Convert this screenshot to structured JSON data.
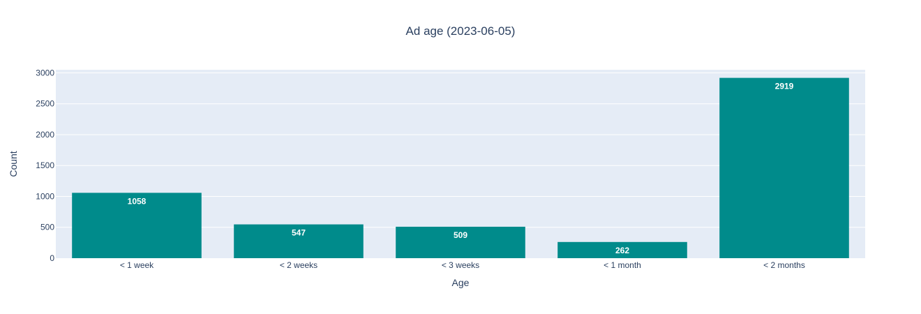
{
  "chart_data": {
    "type": "bar",
    "title": "Ad age (2023-06-05)",
    "xlabel": "Age",
    "ylabel": "Count",
    "categories": [
      "< 1 week",
      "< 2 weeks",
      "< 3 weeks",
      "< 1 month",
      "< 2 months"
    ],
    "values": [
      1058,
      547,
      509,
      262,
      2919
    ],
    "data_labels": [
      "1058",
      "547",
      "509",
      "262",
      "2919"
    ],
    "ylim": [
      0,
      3050
    ],
    "yticks": [
      0,
      500,
      1000,
      1500,
      2000,
      2500,
      3000
    ],
    "ytick_labels": [
      "0",
      "500",
      "1000",
      "1500",
      "2000",
      "2500",
      "3000"
    ],
    "grid": true,
    "bar_color": "#008b8b",
    "plot_bg_color": "#e5ecf6"
  }
}
